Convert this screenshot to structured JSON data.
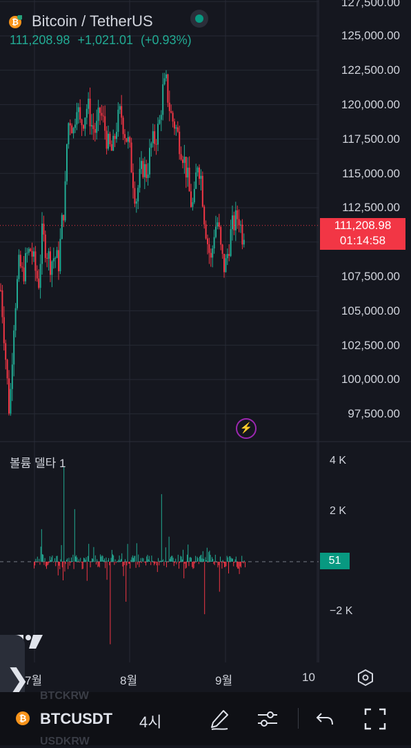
{
  "header": {
    "symbol_title": "Bitcoin / TetherUS",
    "last_price": "111,208.98",
    "change": "+1,021.01",
    "change_pct": "(+0.93%)"
  },
  "price_axis": {
    "labels": [
      "127,500.00",
      "125,000.00",
      "122,500.00",
      "120,000.00",
      "117,500.00",
      "115,000.00",
      "112,500.00",
      "107,500.00",
      "105,000.00",
      "102,500.00",
      "100,000.00",
      "97,500.00"
    ]
  },
  "price_badge": {
    "price": "111,208.98",
    "countdown": "01:14:58"
  },
  "indicator": {
    "title": "볼륨 델타 1",
    "value": "51",
    "axis_labels": [
      "4 K",
      "2 K",
      "−2 K"
    ]
  },
  "time_axis": {
    "labels": [
      "7월",
      "8월",
      "9월",
      "10"
    ]
  },
  "bottom_toolbar": {
    "symbol": "BTCUSDT",
    "interval": "4시",
    "ghost_above": "BTCKRW",
    "ghost_below": "USDKRW"
  },
  "icons": {
    "coin": "bitcoin-icon",
    "live": "live-status-dot",
    "bolt": "lightning-icon",
    "settings": "settings-hexagon-icon",
    "draw": "pen-icon",
    "indicators": "sliders-icon",
    "undo": "undo-icon",
    "fullscreen": "fullscreen-icon",
    "side": "chevron-right-icon"
  },
  "colors": {
    "background": "#15171f",
    "up": "#22ab94",
    "down": "#f23645",
    "grid": "#262a35"
  },
  "chart_data": {
    "type": "candlestick",
    "interval": "4h",
    "ylim": [
      96500,
      128500
    ],
    "last_price": 111208.98,
    "price_path": [
      [
        0,
        106500
      ],
      [
        4,
        104000
      ],
      [
        8,
        101000
      ],
      [
        12,
        98000
      ],
      [
        15,
        99500
      ],
      [
        18,
        103500
      ],
      [
        22,
        106000
      ],
      [
        27,
        108500
      ],
      [
        32,
        107500
      ],
      [
        38,
        109000
      ],
      [
        44,
        109500
      ],
      [
        50,
        108000
      ],
      [
        55,
        107000
      ],
      [
        60,
        110500
      ],
      [
        66,
        109500
      ],
      [
        72,
        108500
      ],
      [
        78,
        109000
      ],
      [
        84,
        108500
      ],
      [
        89,
        111500
      ],
      [
        93,
        113000
      ],
      [
        97,
        118500
      ],
      [
        101,
        119000
      ],
      [
        106,
        118000
      ],
      [
        110,
        120500
      ],
      [
        115,
        118500
      ],
      [
        120,
        119000
      ],
      [
        126,
        120000
      ],
      [
        132,
        118500
      ],
      [
        138,
        118000
      ],
      [
        144,
        119500
      ],
      [
        150,
        118500
      ],
      [
        156,
        117000
      ],
      [
        162,
        116500
      ],
      [
        168,
        118500
      ],
      [
        174,
        119500
      ],
      [
        180,
        118000
      ],
      [
        186,
        117000
      ],
      [
        191,
        115000
      ],
      [
        196,
        113000
      ],
      [
        201,
        114500
      ],
      [
        206,
        115500
      ],
      [
        212,
        115000
      ],
      [
        218,
        117000
      ],
      [
        224,
        117500
      ],
      [
        230,
        118500
      ],
      [
        235,
        121000
      ],
      [
        240,
        121500
      ],
      [
        244,
        120000
      ],
      [
        248,
        119000
      ],
      [
        253,
        118500
      ],
      [
        258,
        117500
      ],
      [
        264,
        116500
      ],
      [
        270,
        115000
      ],
      [
        275,
        113000
      ],
      [
        280,
        112500
      ],
      [
        285,
        116000
      ],
      [
        290,
        115000
      ],
      [
        295,
        112000
      ],
      [
        300,
        110000
      ],
      [
        305,
        108500
      ],
      [
        310,
        111000
      ],
      [
        315,
        111500
      ],
      [
        320,
        109000
      ],
      [
        325,
        108000
      ],
      [
        330,
        109500
      ],
      [
        335,
        111000
      ],
      [
        340,
        111500
      ],
      [
        345,
        112000
      ],
      [
        350,
        110500
      ],
      [
        355,
        111208.98
      ]
    ],
    "volume_delta": {
      "ylim": [
        -4600,
        4600
      ],
      "ticks": [
        4000,
        2000,
        -2000
      ],
      "last_value": 51
    }
  }
}
